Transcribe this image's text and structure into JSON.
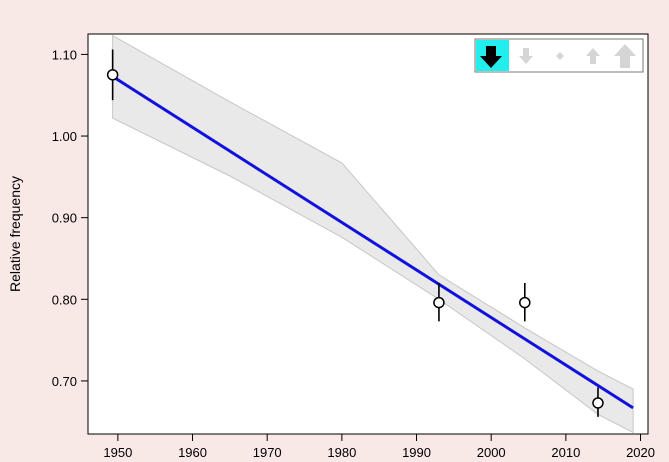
{
  "chart_data": {
    "type": "line",
    "title": "",
    "xlabel": "",
    "ylabel": "Relative frequency",
    "xlim": [
      1946,
      2021
    ],
    "ylim": [
      0.635,
      1.125
    ],
    "x_ticks": [
      1950,
      1960,
      1970,
      1980,
      1990,
      2000,
      2010,
      2020
    ],
    "x_tick_labels": [
      "1950",
      "1960",
      "1970",
      "1980",
      "1990",
      "2000",
      "2010",
      "2020"
    ],
    "y_ticks": [
      0.7,
      0.8,
      0.9,
      1.0,
      1.1
    ],
    "y_tick_labels": [
      "0.70",
      "0.80",
      "0.90",
      "1.00",
      "1.10"
    ],
    "grid": false,
    "series": [
      {
        "kind": "points",
        "points": [
          {
            "x": 1949.3,
            "y": 1.075,
            "ylow": 1.044,
            "yhigh": 1.106
          },
          {
            "x": 1993.0,
            "y": 0.796,
            "ylow": 0.773,
            "yhigh": 0.82
          },
          {
            "x": 2004.5,
            "y": 0.796,
            "ylow": 0.773,
            "yhigh": 0.82
          },
          {
            "x": 2014.3,
            "y": 0.673,
            "ylow": 0.656,
            "yhigh": 0.692
          }
        ]
      },
      {
        "kind": "fit-line",
        "x": [
          1949.3,
          2019.0
        ],
        "y": [
          1.073,
          0.667
        ]
      },
      {
        "kind": "confidence-band",
        "x": [
          1949.3,
          1965.0,
          1980.0,
          1993.0,
          2004.5,
          2014.3,
          2019.0
        ],
        "upper": [
          1.123,
          1.042,
          0.967,
          0.83,
          0.765,
          0.712,
          0.69
        ],
        "lower": [
          1.022,
          0.951,
          0.876,
          0.8,
          0.727,
          0.659,
          0.637
        ]
      }
    ],
    "colors": {
      "fit_line": "#1111dd",
      "band_fill": "#e9e9e9",
      "band_edge": "#c6c6c6",
      "marker_fill": "#ffffff",
      "marker_edge": "#000000",
      "background": "#f8e8e6",
      "plot_background": "#ffffff",
      "legend_active": "#22eeee"
    }
  },
  "trend_legend": {
    "selected": 0,
    "icons": [
      "strong-decrease-arrow-icon",
      "decrease-arrow-icon",
      "stable-diamond-icon",
      "increase-arrow-icon",
      "strong-increase-arrow-icon"
    ]
  }
}
